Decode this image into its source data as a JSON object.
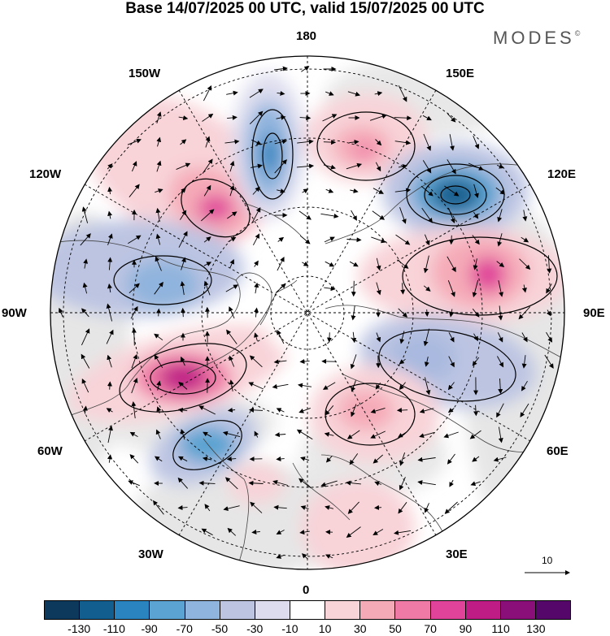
{
  "title": "Base 14/07/2025 00 UTC, valid 15/07/2025 00 UTC",
  "brand": "MODES",
  "brand_mark": "©",
  "longitude_labels": {
    "lon_180": "180",
    "lon_150e": "150E",
    "lon_120e": "120E",
    "lon_90e": "90E",
    "lon_60e": "60E",
    "lon_30e": "30E",
    "lon_0": "0",
    "lon_30w": "30W",
    "lon_60w": "60W",
    "lon_90w": "90W",
    "lon_120w": "120W",
    "lon_150w": "150W"
  },
  "reference_vector": {
    "value": "10"
  },
  "colorbar": {
    "colors": [
      "#0d3a5c",
      "#125e8e",
      "#2a84bf",
      "#5aa3d2",
      "#8fb4dd",
      "#bcc4e2",
      "#dcdcee",
      "#ffffff",
      "#f8d3d8",
      "#f5aab8",
      "#ef7aa6",
      "#e0449a",
      "#c01c86",
      "#8a0f78",
      "#55086a"
    ],
    "tick_labels": [
      "-130",
      "-110",
      "-90",
      "-70",
      "-50",
      "-30",
      "-10",
      "10",
      "30",
      "50",
      "70",
      "90",
      "110",
      "130"
    ]
  },
  "field_colors": {
    "neutral": "#eaeaea",
    "land_line": "#444444",
    "contour": "#000000"
  }
}
